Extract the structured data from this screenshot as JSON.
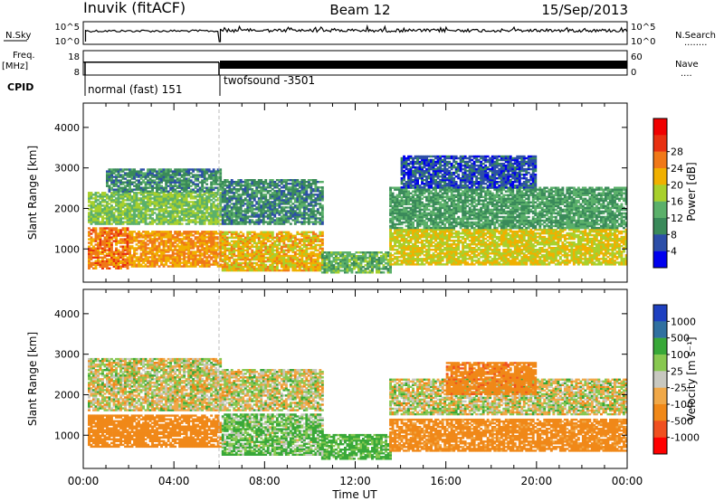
{
  "header": {
    "station": "Inuvik (fitACF)",
    "beam": "Beam 12",
    "date": "15/Sep/2013"
  },
  "noise_panel": {
    "left_label": "N.Sky",
    "right_label": "N.Search",
    "right_legend": "........",
    "left_ticks": [
      "10^5",
      "10^0"
    ],
    "right_ticks": [
      "10^5",
      "10^0"
    ]
  },
  "freq_panel": {
    "left_label_1": "Freq.",
    "left_label_2": "[MHz]",
    "right_label": "Nave",
    "right_legend": "....",
    "left_ticks": [
      "18",
      "8"
    ],
    "right_ticks": [
      "60",
      "0"
    ]
  },
  "cpid": {
    "label": "CPID",
    "modes": [
      {
        "name": "normal (fast) 151",
        "start_hour": 0.1,
        "end_hour": 6.0
      },
      {
        "name": "twofsound -3501",
        "start_hour": 6.0,
        "end_hour": 24.0
      }
    ]
  },
  "colors": {
    "power_scale": [
      "#0000ee",
      "#2c4ea8",
      "#3a8a5a",
      "#5bb06a",
      "#a8d02c",
      "#f0b000",
      "#f07818",
      "#e83010",
      "#f00000"
    ],
    "velocity_scale": [
      "#ff0000",
      "#f05020",
      "#f08818",
      "#f0a848",
      "#c8c8c0",
      "#88c850",
      "#38a838",
      "#3070a0",
      "#1e40c0"
    ]
  },
  "chart_data": [
    {
      "type": "heatmap",
      "panel": "power",
      "ylabel": "Slant Range [km]",
      "xlabel": "Time UT",
      "x_ticks": [
        "00:00",
        "04:00",
        "08:00",
        "12:00",
        "16:00",
        "20:00",
        "00:00"
      ],
      "x_range_hours": [
        0,
        24
      ],
      "y_ticks": [
        "1000",
        "2000",
        "3000",
        "4000"
      ],
      "y_range_km": [
        180,
        4600
      ],
      "colorbar": {
        "label": "Power [dB]",
        "ticks": [
          "4",
          "8",
          "12",
          "16",
          "20",
          "24",
          "28"
        ],
        "range": [
          0,
          32
        ]
      },
      "bands": [
        {
          "t0": 0.2,
          "t1": 2.0,
          "r0": 500,
          "r1": 1500,
          "v": 26
        },
        {
          "t0": 2.0,
          "t1": 6.0,
          "r0": 550,
          "r1": 1450,
          "v": 24
        },
        {
          "t0": 6.1,
          "t1": 10.5,
          "r0": 450,
          "r1": 1400,
          "v": 22
        },
        {
          "t0": 10.5,
          "t1": 13.5,
          "r0": 400,
          "r1": 900,
          "v": 14
        },
        {
          "t0": 13.5,
          "t1": 24.0,
          "r0": 600,
          "r1": 1500,
          "v": 20
        },
        {
          "t0": 0.2,
          "t1": 6.0,
          "r0": 1600,
          "r1": 2400,
          "v": 16
        },
        {
          "t0": 1.0,
          "t1": 6.0,
          "r0": 2400,
          "r1": 2950,
          "v": 10
        },
        {
          "t0": 6.1,
          "t1": 10.5,
          "r0": 1600,
          "r1": 2700,
          "v": 10
        },
        {
          "t0": 13.5,
          "t1": 24.0,
          "r0": 1500,
          "r1": 2500,
          "v": 12
        },
        {
          "t0": 14.0,
          "t1": 20.0,
          "r0": 2500,
          "r1": 3300,
          "v": 6
        }
      ]
    },
    {
      "type": "heatmap",
      "panel": "velocity",
      "ylabel": "Slant Range [km]",
      "xlabel": "Time UT",
      "x_ticks": [
        "00:00",
        "04:00",
        "08:00",
        "12:00",
        "16:00",
        "20:00",
        "00:00"
      ],
      "x_range_hours": [
        0,
        24
      ],
      "y_ticks": [
        "1000",
        "2000",
        "3000",
        "4000"
      ],
      "y_range_km": [
        180,
        4600
      ],
      "colorbar": {
        "label": "Velocity [m s⁻¹]",
        "ticks": [
          "1000",
          "500",
          "100",
          "25",
          "-25",
          "-100",
          "-500",
          "-1000"
        ]
      },
      "bands": [
        {
          "t0": 0.2,
          "t1": 6.0,
          "r0": 700,
          "r1": 1500,
          "v": -300
        },
        {
          "t0": 6.1,
          "t1": 10.5,
          "r0": 500,
          "r1": 1500,
          "v": 100
        },
        {
          "t0": 10.5,
          "t1": 13.5,
          "r0": 400,
          "r1": 1000,
          "v": 150
        },
        {
          "t0": 13.5,
          "t1": 24.0,
          "r0": 600,
          "r1": 1400,
          "v": -200
        },
        {
          "t0": 0.2,
          "t1": 6.0,
          "r0": 1600,
          "r1": 2900,
          "v": 0
        },
        {
          "t0": 6.1,
          "t1": 10.5,
          "r0": 1600,
          "r1": 2600,
          "v": 0
        },
        {
          "t0": 13.5,
          "t1": 24.0,
          "r0": 1500,
          "r1": 2400,
          "v": 0
        },
        {
          "t0": 16.0,
          "t1": 20.0,
          "r0": 2000,
          "r1": 2800,
          "v": -400
        }
      ]
    }
  ]
}
